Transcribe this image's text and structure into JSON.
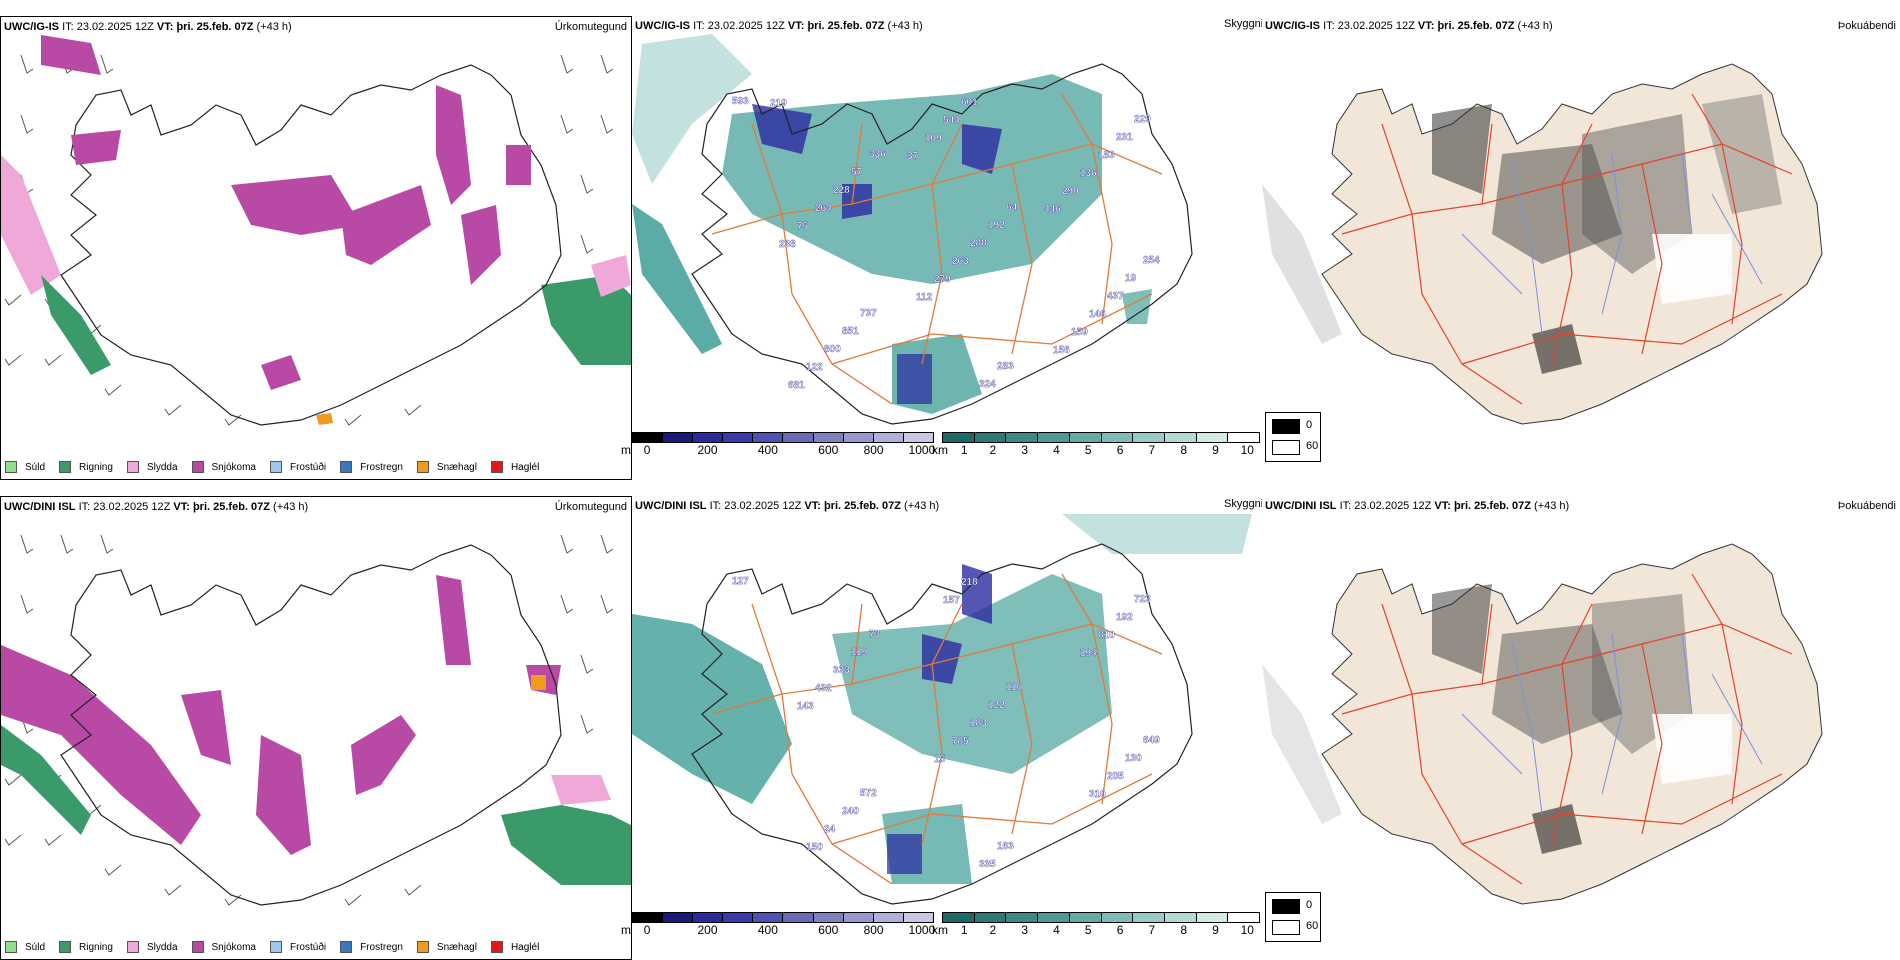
{
  "panels": [
    {
      "model": "UWC/IG-IS",
      "precip": {
        "it_label": "IT:",
        "it": "23.02.2025 12Z",
        "vt_label": "VT:",
        "vt": "þri. 25.feb. 07Z",
        "lead": "(+43 h)",
        "title": "Úrkomutegund"
      },
      "vis": {
        "it_label": "IT:",
        "it": "23.02.2025 12Z",
        "vt_label": "VT:",
        "vt": "þri. 25.feb. 07Z",
        "lead": "(+43 h)",
        "title": "Skyggni"
      },
      "fog": {
        "it_label": "IT:",
        "it": "23.02.2025 12Z",
        "vt_label": "VT:",
        "vt": "þri. 25.feb. 07Z",
        "lead": "(+43 h)",
        "title": "Þokuábendi"
      },
      "labels": [
        "593",
        "336",
        "64",
        "254",
        "737",
        "283",
        "229",
        "57",
        "192",
        "19",
        "851",
        "324",
        "231",
        "228",
        "288",
        "437",
        "800",
        "601",
        "183",
        "264",
        "263",
        "146",
        "122",
        "544",
        "136",
        "75",
        "279",
        "159",
        "681",
        "109",
        "290",
        "238",
        "112",
        "156",
        "219",
        "37",
        "446"
      ]
    },
    {
      "model": "UWC/DINI ISL",
      "precip": {
        "it_label": "IT:",
        "it": "23.02.2025 12Z",
        "vt_label": "VT:",
        "vt": "þri. 25.feb. 07Z",
        "lead": "(+43 h)",
        "title": "Úrkomutegund"
      },
      "vis": {
        "it_label": "IT:",
        "it": "23.02.2025 12Z",
        "vt_label": "VT:",
        "vt": "þri. 25.feb. 07Z",
        "lead": "(+43 h)",
        "title": "Skyggni"
      },
      "fog": {
        "it_label": "IT:",
        "it": "23.02.2025 12Z",
        "vt_label": "VT:",
        "vt": "þri. 25.feb. 07Z",
        "lead": "(+43 h)",
        "title": "Þokuábendi"
      },
      "labels": [
        "127",
        "73",
        "110",
        "649",
        "572",
        "163",
        "723",
        "119",
        "122",
        "130",
        "240",
        "335",
        "192",
        "333",
        "183",
        "205",
        "24",
        "218",
        "810",
        "432",
        "785",
        "310",
        "150",
        "157",
        "194",
        "143",
        "15"
      ]
    }
  ],
  "precip_legend": [
    {
      "label": "Súld",
      "color": "#8ee08e"
    },
    {
      "label": "Rigning",
      "color": "#3a9a6a"
    },
    {
      "label": "Slydda",
      "color": "#f0a8d8"
    },
    {
      "label": "Snjókoma",
      "color": "#b84aa6"
    },
    {
      "label": "Frostúði",
      "color": "#9ec8f0"
    },
    {
      "label": "Frostregn",
      "color": "#3a78c0"
    },
    {
      "label": "Snæhagl",
      "color": "#f09a20"
    },
    {
      "label": "Haglél",
      "color": "#e01818"
    }
  ],
  "ceiling_scale": {
    "unit": "m",
    "ticks": [
      "0",
      "200",
      "400",
      "600",
      "800",
      "1000"
    ],
    "colors": [
      "#000000",
      "#1a1a7a",
      "#2a2a9a",
      "#3a3aa8",
      "#5050b0",
      "#6a6ab8",
      "#8080c0",
      "#9898cc",
      "#b0b0d8",
      "#c8c8e4"
    ]
  },
  "vis_scale": {
    "unit": "km",
    "ticks": [
      "1",
      "2",
      "3",
      "4",
      "5",
      "6",
      "7",
      "8",
      "9",
      "10"
    ],
    "colors": [
      "#1a6a6a",
      "#2a7a78",
      "#3a8a86",
      "#4f9a96",
      "#66aaa6",
      "#80bab6",
      "#9acac6",
      "#b4dad6",
      "#d0eae6",
      "#ffffff"
    ]
  },
  "fog_legend": [
    {
      "label": "0",
      "color": "#000000"
    },
    {
      "label": "60",
      "color": "#ffffff"
    }
  ],
  "colors": {
    "iceland_bg": "#f2e6d8",
    "roads": "#e07a3a",
    "rivers": "#7a90e0",
    "vis_fill": "#4aa39c",
    "ceiling": "#2a2aa0"
  }
}
